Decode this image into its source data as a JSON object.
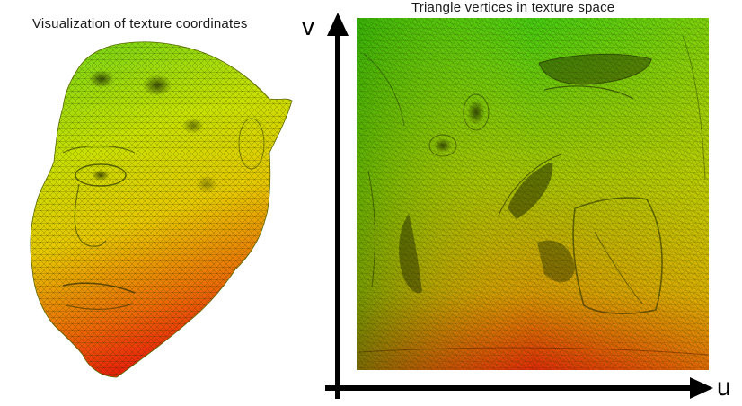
{
  "figure": {
    "left_caption": "Visualization of texture coordinates",
    "right_caption": "Triangle vertices in texture space",
    "axis_v_label": "v",
    "axis_u_label": "u"
  },
  "colors": {
    "top": "#3fce12",
    "mid": "#d8e000",
    "bottom": "#e2180a",
    "mesh_line": "#1e2a00",
    "axis": "#000000"
  },
  "icons": [
    "head-mesh-illustration",
    "uv-map-illustration",
    "v-axis-arrow",
    "u-axis-arrow"
  ]
}
